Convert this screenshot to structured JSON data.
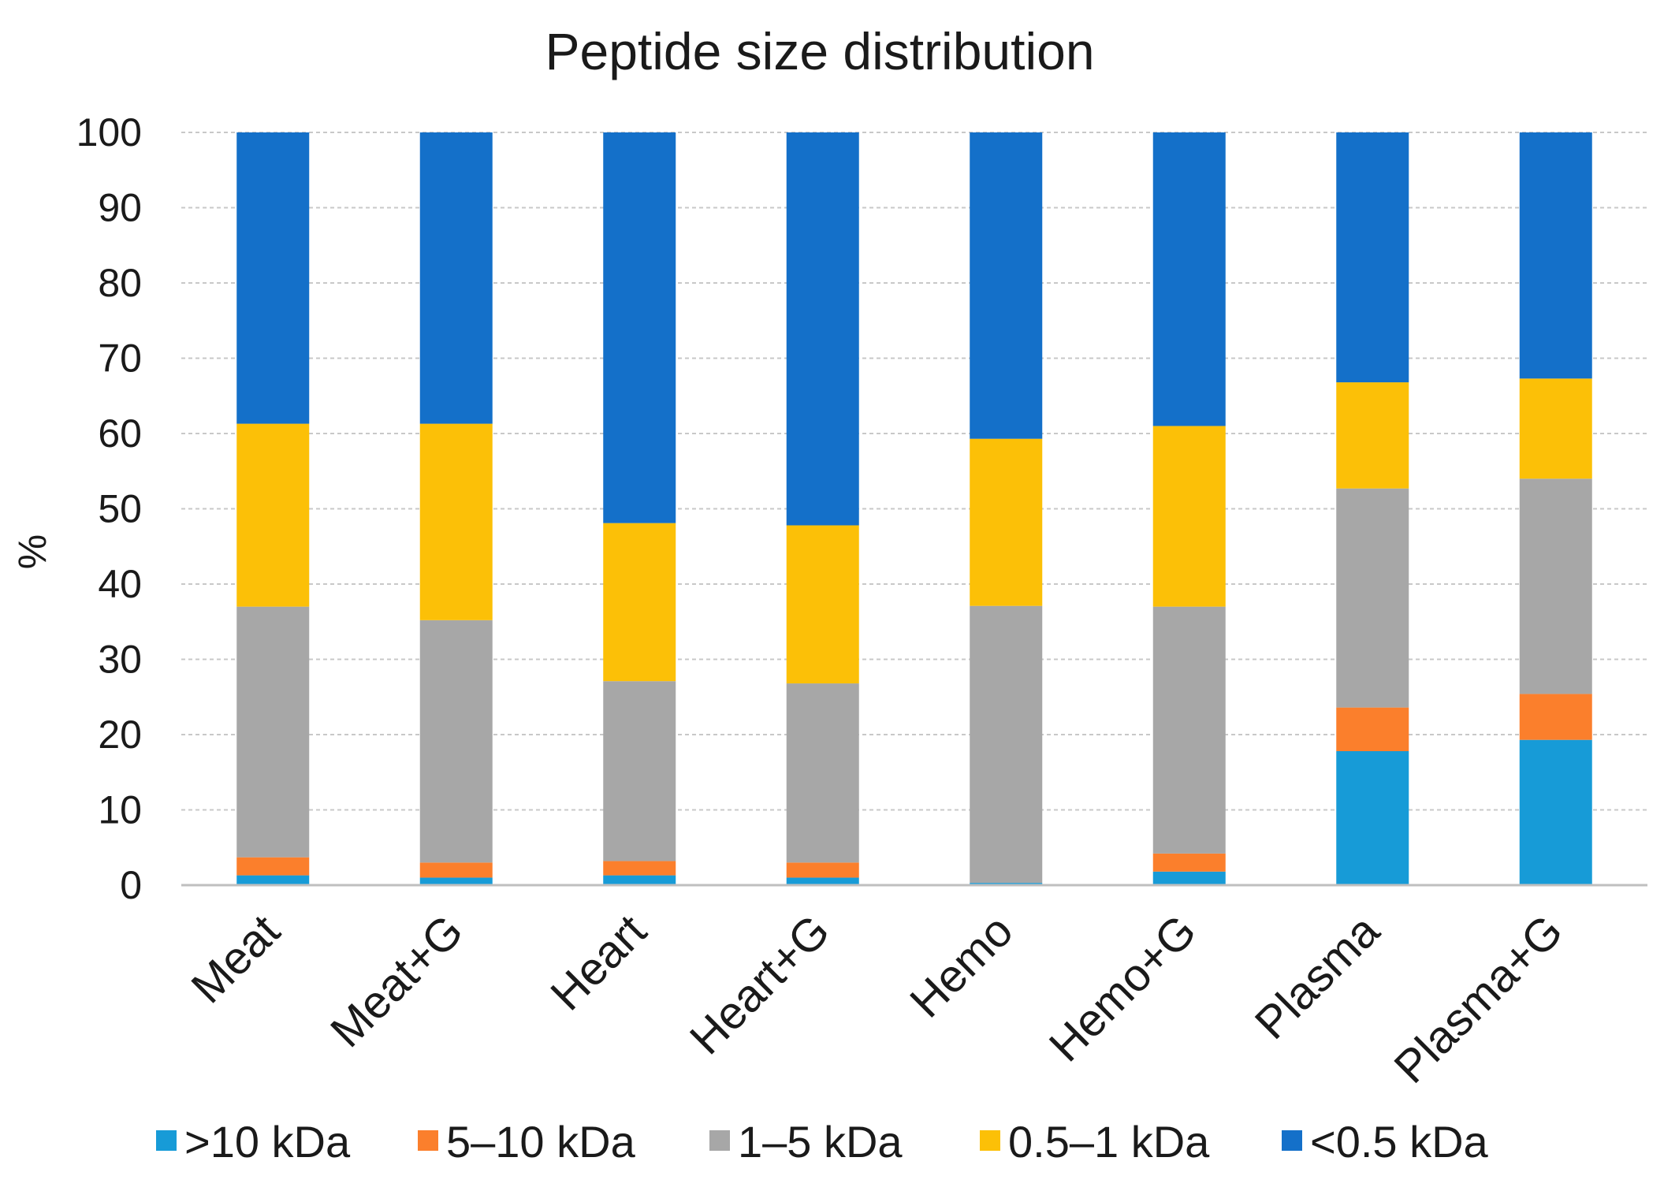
{
  "chart_data": {
    "type": "bar",
    "stacked": true,
    "title": "Peptide size distribution",
    "xlabel": "",
    "ylabel": "%",
    "ylim": [
      0,
      100
    ],
    "yticks": [
      "0",
      "10",
      "20",
      "30",
      "40",
      "50",
      "60",
      "70",
      "80",
      "90",
      "100"
    ],
    "grid": true,
    "legend_position": "bottom",
    "categories": [
      "Meat",
      "Meat+G",
      "Heart",
      "Heart+G",
      "Hemo",
      "Hemo+G",
      "Plasma",
      "Plasma+G"
    ],
    "series": [
      {
        "name": ">10 kDa",
        "color": "#179bd7",
        "values": [
          1.3,
          1.0,
          1.3,
          1.0,
          0.3,
          1.8,
          17.8,
          19.3
        ]
      },
      {
        "name": "5–10 kDa",
        "color": "#fb7f2c",
        "values": [
          2.4,
          2.0,
          1.9,
          2.0,
          0.0,
          2.4,
          5.8,
          6.1
        ]
      },
      {
        "name": "1–5 kDa",
        "color": "#a7a7a7",
        "values": [
          33.3,
          32.2,
          23.9,
          23.8,
          36.8,
          32.8,
          29.1,
          28.6
        ]
      },
      {
        "name": "0.5–1 kDa",
        "color": "#fcc007",
        "values": [
          24.3,
          26.1,
          21.0,
          21.0,
          22.2,
          24.0,
          14.1,
          13.3
        ]
      },
      {
        "name": "<0.5 kDa",
        "color": "#1470c9",
        "values": [
          38.7,
          38.7,
          51.9,
          52.2,
          40.7,
          39.0,
          33.2,
          32.7
        ]
      }
    ]
  }
}
